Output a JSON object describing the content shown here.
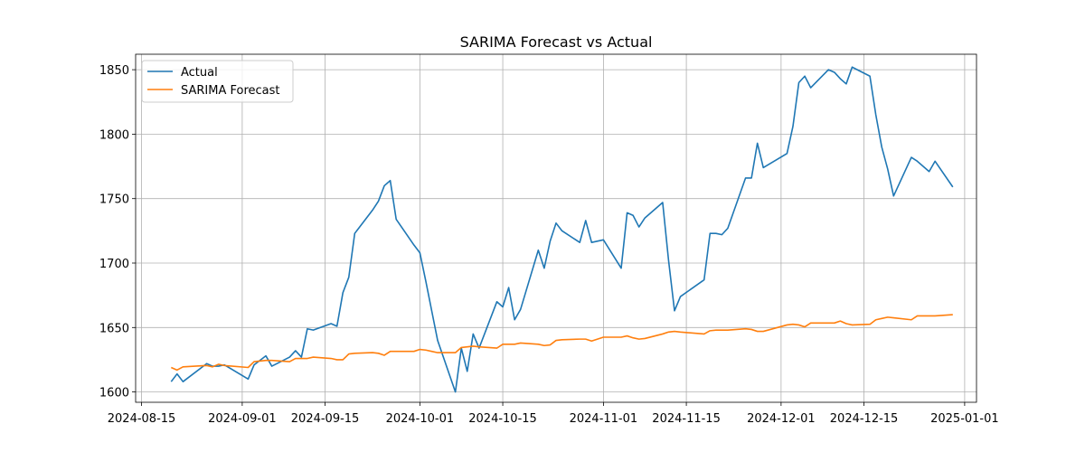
{
  "chart_data": {
    "type": "line",
    "title": "SARIMA Forecast vs Actual",
    "xlabel": "",
    "ylabel": "",
    "x_axis": "date",
    "xlim": [
      "2024-08-14",
      "2025-01-03"
    ],
    "ylim": [
      1592,
      1862
    ],
    "grid": true,
    "legend_position": "top-left",
    "xticks": [
      "2024-08-15",
      "2024-09-01",
      "2024-09-15",
      "2024-10-01",
      "2024-10-15",
      "2024-11-01",
      "2024-11-15",
      "2024-12-01",
      "2024-12-15",
      "2025-01-01"
    ],
    "yticks": [
      1600,
      1650,
      1700,
      1750,
      1800,
      1850
    ],
    "series": [
      {
        "name": "Actual",
        "color": "#1f77b4",
        "points": [
          [
            "2024-08-20",
            1608
          ],
          [
            "2024-08-21",
            1614
          ],
          [
            "2024-08-22",
            1608
          ],
          [
            "2024-08-26",
            1622
          ],
          [
            "2024-08-27",
            1620
          ],
          [
            "2024-08-28",
            1620
          ],
          [
            "2024-08-29",
            1621
          ],
          [
            "2024-09-02",
            1610
          ],
          [
            "2024-09-03",
            1621
          ],
          [
            "2024-09-05",
            1628
          ],
          [
            "2024-09-06",
            1620
          ],
          [
            "2024-09-09",
            1627
          ],
          [
            "2024-09-10",
            1632
          ],
          [
            "2024-09-11",
            1627
          ],
          [
            "2024-09-12",
            1649
          ],
          [
            "2024-09-13",
            1648
          ],
          [
            "2024-09-16",
            1653
          ],
          [
            "2024-09-17",
            1651
          ],
          [
            "2024-09-18",
            1677
          ],
          [
            "2024-09-19",
            1689
          ],
          [
            "2024-09-20",
            1723
          ],
          [
            "2024-09-23",
            1741
          ],
          [
            "2024-09-24",
            1748
          ],
          [
            "2024-09-25",
            1760
          ],
          [
            "2024-09-26",
            1764
          ],
          [
            "2024-09-27",
            1734
          ],
          [
            "2024-09-30",
            1714
          ],
          [
            "2024-10-01",
            1708
          ],
          [
            "2024-10-02",
            1686
          ],
          [
            "2024-10-03",
            1663
          ],
          [
            "2024-10-04",
            1640
          ],
          [
            "2024-10-07",
            1600
          ],
          [
            "2024-10-08",
            1634
          ],
          [
            "2024-10-09",
            1616
          ],
          [
            "2024-10-10",
            1645
          ],
          [
            "2024-10-11",
            1634
          ],
          [
            "2024-10-14",
            1670
          ],
          [
            "2024-10-15",
            1666
          ],
          [
            "2024-10-16",
            1681
          ],
          [
            "2024-10-17",
            1656
          ],
          [
            "2024-10-18",
            1664
          ],
          [
            "2024-10-21",
            1710
          ],
          [
            "2024-10-22",
            1696
          ],
          [
            "2024-10-23",
            1717
          ],
          [
            "2024-10-24",
            1731
          ],
          [
            "2024-10-25",
            1725
          ],
          [
            "2024-10-28",
            1716
          ],
          [
            "2024-10-29",
            1733
          ],
          [
            "2024-10-30",
            1716
          ],
          [
            "2024-11-01",
            1718
          ],
          [
            "2024-11-04",
            1696
          ],
          [
            "2024-11-05",
            1739
          ],
          [
            "2024-11-06",
            1737
          ],
          [
            "2024-11-07",
            1728
          ],
          [
            "2024-11-08",
            1735
          ],
          [
            "2024-11-11",
            1747
          ],
          [
            "2024-11-12",
            1702
          ],
          [
            "2024-11-13",
            1663
          ],
          [
            "2024-11-14",
            1674
          ],
          [
            "2024-11-18",
            1687
          ],
          [
            "2024-11-19",
            1723
          ],
          [
            "2024-11-20",
            1723
          ],
          [
            "2024-11-21",
            1722
          ],
          [
            "2024-11-22",
            1727
          ],
          [
            "2024-11-25",
            1766
          ],
          [
            "2024-11-26",
            1766
          ],
          [
            "2024-11-27",
            1793
          ],
          [
            "2024-11-28",
            1774
          ],
          [
            "2024-12-02",
            1785
          ],
          [
            "2024-12-03",
            1806
          ],
          [
            "2024-12-04",
            1840
          ],
          [
            "2024-12-05",
            1845
          ],
          [
            "2024-12-06",
            1836
          ],
          [
            "2024-12-09",
            1850
          ],
          [
            "2024-12-10",
            1848
          ],
          [
            "2024-12-11",
            1843
          ],
          [
            "2024-12-12",
            1839
          ],
          [
            "2024-12-13",
            1852
          ],
          [
            "2024-12-16",
            1845
          ],
          [
            "2024-12-17",
            1815
          ],
          [
            "2024-12-18",
            1790
          ],
          [
            "2024-12-19",
            1773
          ],
          [
            "2024-12-20",
            1752
          ],
          [
            "2024-12-23",
            1782
          ],
          [
            "2024-12-24",
            1779
          ],
          [
            "2024-12-26",
            1771
          ],
          [
            "2024-12-27",
            1779
          ],
          [
            "2024-12-30",
            1759
          ]
        ]
      },
      {
        "name": "SARIMA Forecast",
        "color": "#ff7f0e",
        "points": [
          [
            "2024-08-20",
            1619
          ],
          [
            "2024-08-21",
            1617
          ],
          [
            "2024-08-22",
            1619.5
          ],
          [
            "2024-08-26",
            1620.5
          ],
          [
            "2024-08-27",
            1619.5
          ],
          [
            "2024-08-28",
            1621.5
          ],
          [
            "2024-08-29",
            1620.5
          ],
          [
            "2024-09-02",
            1619
          ],
          [
            "2024-09-03",
            1623.5
          ],
          [
            "2024-09-05",
            1624.5
          ],
          [
            "2024-09-06",
            1624.5
          ],
          [
            "2024-09-09",
            1623.5
          ],
          [
            "2024-09-10",
            1626
          ],
          [
            "2024-09-11",
            1626
          ],
          [
            "2024-09-12",
            1626
          ],
          [
            "2024-09-13",
            1627
          ],
          [
            "2024-09-16",
            1626
          ],
          [
            "2024-09-17",
            1625
          ],
          [
            "2024-09-18",
            1625
          ],
          [
            "2024-09-19",
            1629.5
          ],
          [
            "2024-09-20",
            1630
          ],
          [
            "2024-09-23",
            1630.5
          ],
          [
            "2024-09-24",
            1630
          ],
          [
            "2024-09-25",
            1628.5
          ],
          [
            "2024-09-26",
            1631.5
          ],
          [
            "2024-09-27",
            1631.5
          ],
          [
            "2024-09-30",
            1631.5
          ],
          [
            "2024-10-01",
            1633
          ],
          [
            "2024-10-02",
            1632.5
          ],
          [
            "2024-10-03",
            1631.5
          ],
          [
            "2024-10-04",
            1630.5
          ],
          [
            "2024-10-07",
            1630.5
          ],
          [
            "2024-10-08",
            1634.5
          ],
          [
            "2024-10-09",
            1635
          ],
          [
            "2024-10-10",
            1635.5
          ],
          [
            "2024-10-11",
            1635
          ],
          [
            "2024-10-14",
            1634
          ],
          [
            "2024-10-15",
            1637
          ],
          [
            "2024-10-16",
            1637
          ],
          [
            "2024-10-17",
            1637
          ],
          [
            "2024-10-18",
            1638
          ],
          [
            "2024-10-21",
            1637
          ],
          [
            "2024-10-22",
            1636
          ],
          [
            "2024-10-23",
            1636.5
          ],
          [
            "2024-10-24",
            1640
          ],
          [
            "2024-10-25",
            1640.5
          ],
          [
            "2024-10-28",
            1641
          ],
          [
            "2024-10-29",
            1641
          ],
          [
            "2024-10-30",
            1639.5
          ],
          [
            "2024-11-01",
            1642.5
          ],
          [
            "2024-11-04",
            1642.5
          ],
          [
            "2024-11-05",
            1643.5
          ],
          [
            "2024-11-06",
            1642
          ],
          [
            "2024-11-07",
            1641
          ],
          [
            "2024-11-08",
            1641.5
          ],
          [
            "2024-11-11",
            1645
          ],
          [
            "2024-11-12",
            1646.5
          ],
          [
            "2024-11-13",
            1647
          ],
          [
            "2024-11-14",
            1646.5
          ],
          [
            "2024-11-18",
            1645
          ],
          [
            "2024-11-19",
            1647.5
          ],
          [
            "2024-11-20",
            1648
          ],
          [
            "2024-11-21",
            1648
          ],
          [
            "2024-11-22",
            1648
          ],
          [
            "2024-11-25",
            1649
          ],
          [
            "2024-11-26",
            1648.5
          ],
          [
            "2024-11-27",
            1647
          ],
          [
            "2024-11-28",
            1647
          ],
          [
            "2024-12-02",
            1652
          ],
          [
            "2024-12-03",
            1652.5
          ],
          [
            "2024-12-04",
            1652
          ],
          [
            "2024-12-05",
            1650.5
          ],
          [
            "2024-12-06",
            1653.5
          ],
          [
            "2024-12-09",
            1653.5
          ],
          [
            "2024-12-10",
            1653.5
          ],
          [
            "2024-12-11",
            1655
          ],
          [
            "2024-12-12",
            1653
          ],
          [
            "2024-12-13",
            1652
          ],
          [
            "2024-12-16",
            1652.5
          ],
          [
            "2024-12-17",
            1656
          ],
          [
            "2024-12-18",
            1657
          ],
          [
            "2024-12-19",
            1658
          ],
          [
            "2024-12-20",
            1657.5
          ],
          [
            "2024-12-23",
            1656
          ],
          [
            "2024-12-24",
            1659
          ],
          [
            "2024-12-26",
            1659
          ],
          [
            "2024-12-27",
            1659
          ],
          [
            "2024-12-30",
            1660
          ]
        ]
      }
    ]
  }
}
